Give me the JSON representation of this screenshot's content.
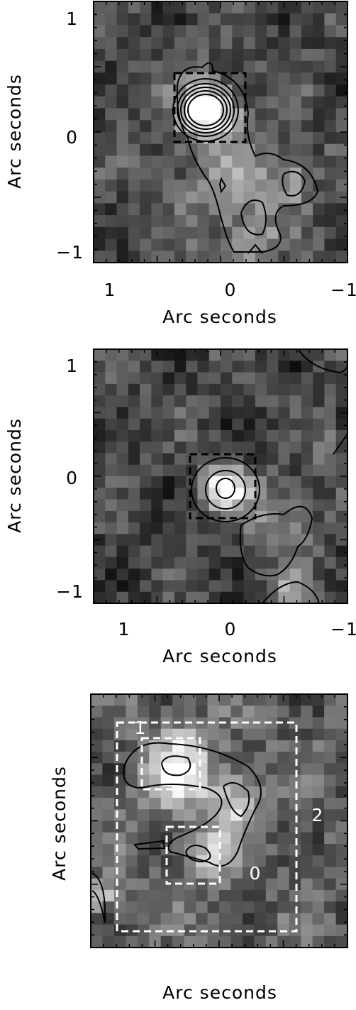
{
  "panels": [
    {
      "y_axis": {
        "label": "Arc seconds",
        "ticks": [
          "1",
          "0",
          "−1"
        ]
      },
      "x_axis": {
        "label": "Arc seconds",
        "ticks": [
          "1",
          "0",
          "−1"
        ]
      }
    },
    {
      "y_axis": {
        "label": "Arc seconds",
        "ticks": [
          "1",
          "0",
          "−1"
        ]
      },
      "x_axis": {
        "label": "Arc seconds",
        "ticks": [
          "1",
          "0",
          "−1"
        ]
      }
    },
    {
      "y_axis": {
        "label": "Arc seconds"
      },
      "x_axis": {
        "label": "Arc seconds"
      },
      "region_labels": [
        "1",
        "2",
        "0"
      ]
    }
  ]
}
